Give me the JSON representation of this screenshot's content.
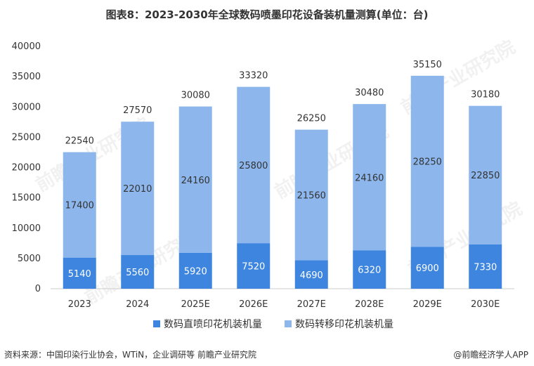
{
  "title": "图表8：2023-2030年全球数码喷墨印花设备装机量测算(单位：台)",
  "source": "资料来源：中国印染行业协会，WTiN，企业调研等 前瞻产业研究院",
  "brand": "@前瞻经济学人APP",
  "watermark": "前瞻产业研究院",
  "colors": {
    "direct": "#3d85de",
    "transfer": "#8db7ec",
    "axis": "#cccccc",
    "text": "#333333"
  },
  "chart_data": {
    "type": "bar",
    "stacked": true,
    "categories": [
      "2023",
      "2024",
      "2025E",
      "2026E",
      "2027E",
      "2028E",
      "2029E",
      "2030E"
    ],
    "series": [
      {
        "name": "数码直喷印花机装机量",
        "values": [
          5140,
          5560,
          5920,
          7520,
          4690,
          6320,
          6900,
          7330
        ]
      },
      {
        "name": "数码转移印花机装机量",
        "values": [
          17400,
          22010,
          24160,
          25800,
          21560,
          24160,
          28250,
          22850
        ]
      }
    ],
    "totals": [
      22540,
      27570,
      30080,
      33320,
      26250,
      30480,
      35150,
      30180
    ],
    "ylim": [
      0,
      40000
    ],
    "yticks": [
      0,
      5000,
      10000,
      15000,
      20000,
      25000,
      30000,
      35000,
      40000
    ],
    "legend_position": "bottom",
    "grid": false
  }
}
